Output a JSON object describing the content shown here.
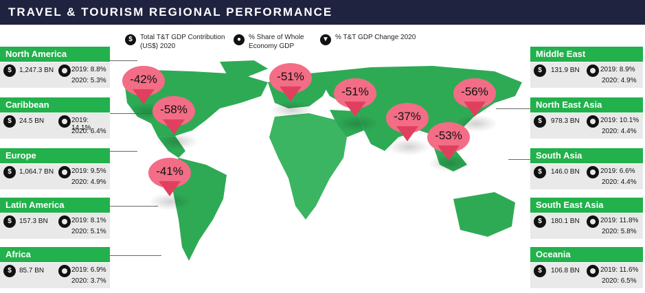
{
  "header": {
    "title": "TRAVEL & TOURISM REGIONAL PERFORMANCE"
  },
  "legend": {
    "gdp_label": "Total T&T GDP Contribution (US$) 2020",
    "share_label": "% Share of Whole Economy GDP",
    "change_label": "% T&T GDP Change 2020"
  },
  "colors": {
    "header_bg": "#1f2340",
    "panel_green": "#22b14c",
    "map_green": "#2eaa55",
    "pin": "#f26d85"
  },
  "icons": {
    "gdp": "dollar-icon",
    "share": "pie-icon",
    "change": "map-pin-icon"
  },
  "regions_left": [
    {
      "name": "North America",
      "gdp": "1,247.3 BN",
      "s2019": "2019: 8.8%",
      "s2020": "2020: 5.3%"
    },
    {
      "name": "Caribbean",
      "gdp": "24.5 BN",
      "s2019": "2019: 14.1%",
      "s2020": "2020: 6.4%"
    },
    {
      "name": "Europe",
      "gdp": "1,064.7 BN",
      "s2019": "2019: 9.5%",
      "s2020": "2020: 4.9%"
    },
    {
      "name": "Latin America",
      "gdp": "157.3 BN",
      "s2019": "2019: 8.1%",
      "s2020": "2020: 5.1%"
    },
    {
      "name": "Africa",
      "gdp": "85.7 BN",
      "s2019": "2019: 6.9%",
      "s2020": "2020: 3.7%"
    }
  ],
  "regions_right": [
    {
      "name": "Middle East",
      "gdp": "131.9 BN",
      "s2019": "2019: 8.9%",
      "s2020": "2020: 4.9%"
    },
    {
      "name": "North East Asia",
      "gdp": "978.3 BN",
      "s2019": "2019: 10.1%",
      "s2020": "2020: 4.4%"
    },
    {
      "name": "South Asia",
      "gdp": "146.0 BN",
      "s2019": "2019: 6.6%",
      "s2020": "2020: 4.4%"
    },
    {
      "name": "South East Asia",
      "gdp": "180.1 BN",
      "s2019": "2019: 11.8%",
      "s2020": "2020: 5.8%"
    },
    {
      "name": "Oceania",
      "gdp": "106.8 BN",
      "s2019": "2019: 11.6%",
      "s2020": "2020: 6.5%"
    }
  ],
  "pins": [
    "-42%",
    "-58%",
    "-41%",
    "-51%",
    "-51%",
    "-37%",
    "-56%",
    "-53%"
  ]
}
